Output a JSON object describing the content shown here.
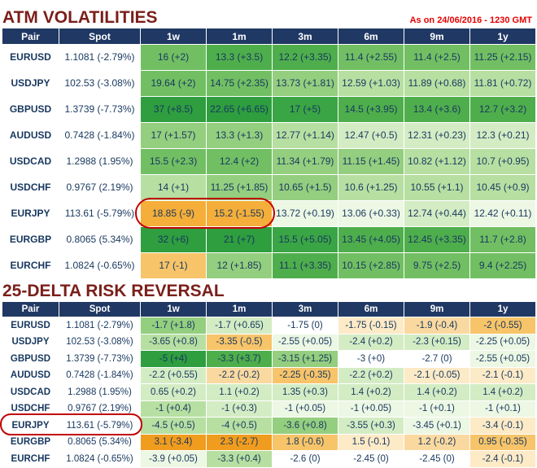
{
  "page": {
    "timestamp": "As on 24/06/2016 - 1230 GMT"
  },
  "colors": {
    "header_bg": "#203864",
    "title_text": "#7a1f1a",
    "timestamp_text": "#e60000",
    "cell_text": "#17375e",
    "highlight_stroke": "#c00000"
  },
  "annotations": [
    {
      "shape": "ellipse",
      "color": "#c00000",
      "table": "ATM VOLATILITIES",
      "row": "EURJPY",
      "columns": [
        "1w",
        "1m"
      ]
    },
    {
      "shape": "ellipse",
      "color": "#c00000",
      "table": "25-DELTA RISK REVERSAL",
      "row": "EURJPY",
      "columns": [
        "Pair",
        "Spot"
      ]
    }
  ],
  "tables": [
    {
      "id": "atm-volatilities",
      "title": "ATM VOLATILITIES",
      "columns": [
        "Pair",
        "Spot",
        "1w",
        "1m",
        "3m",
        "6m",
        "9m",
        "1y"
      ],
      "rows": [
        {
          "pair": "EURUSD",
          "spot": "1.1081 (-2.79%)",
          "cells": [
            {
              "text": "16 (+2)",
              "bg": "#72bf63"
            },
            {
              "text": "13.3 (+3.5)",
              "bg": "#4fae4c"
            },
            {
              "text": "12.2 (+3.35)",
              "bg": "#4fae4c"
            },
            {
              "text": "11.4 (+2.55)",
              "bg": "#72bf63"
            },
            {
              "text": "11.4 (+2.5)",
              "bg": "#72bf63"
            },
            {
              "text": "11.25 (+2.15)",
              "bg": "#72bf63"
            }
          ]
        },
        {
          "pair": "USDJPY",
          "spot": "102.53 (-3.08%)",
          "cells": [
            {
              "text": "19.64 (+2)",
              "bg": "#72bf63"
            },
            {
              "text": "14.75 (+2.35)",
              "bg": "#72bf63"
            },
            {
              "text": "13.73 (+1.81)",
              "bg": "#94ce7f"
            },
            {
              "text": "12.59 (+1.03)",
              "bg": "#b7dfa2"
            },
            {
              "text": "11.89 (+0.68)",
              "bg": "#b7dfa2"
            },
            {
              "text": "11.81 (+0.72)",
              "bg": "#b7dfa2"
            }
          ]
        },
        {
          "pair": "GBPUSD",
          "spot": "1.3739 (-7.73%)",
          "cells": [
            {
              "text": "37 (+8.5)",
              "bg": "#2e9e3f"
            },
            {
              "text": "22.65 (+6.65)",
              "bg": "#2e9e3f"
            },
            {
              "text": "17 (+5)",
              "bg": "#3aa545"
            },
            {
              "text": "14.5 (+3.95)",
              "bg": "#4fae4c"
            },
            {
              "text": "13.4 (+3.6)",
              "bg": "#4fae4c"
            },
            {
              "text": "12.7 (+3.2)",
              "bg": "#4fae4c"
            }
          ]
        },
        {
          "pair": "AUDUSD",
          "spot": "0.7428 (-1.84%)",
          "cells": [
            {
              "text": "17 (+1.57)",
              "bg": "#94ce7f"
            },
            {
              "text": "13.3 (+1.3)",
              "bg": "#94ce7f"
            },
            {
              "text": "12.77 (+1.14)",
              "bg": "#b7dfa2"
            },
            {
              "text": "12.47 (+0.5)",
              "bg": "#d4ecc4"
            },
            {
              "text": "12.31 (+0.23)",
              "bg": "#d4ecc4"
            },
            {
              "text": "12.3 (+0.21)",
              "bg": "#d4ecc4"
            }
          ]
        },
        {
          "pair": "USDCAD",
          "spot": "1.2988 (1.95%)",
          "cells": [
            {
              "text": "15.5 (+2.3)",
              "bg": "#72bf63"
            },
            {
              "text": "12.4 (+2)",
              "bg": "#72bf63"
            },
            {
              "text": "11.34 (+1.79)",
              "bg": "#94ce7f"
            },
            {
              "text": "11.15 (+1.45)",
              "bg": "#94ce7f"
            },
            {
              "text": "10.82 (+1.12)",
              "bg": "#b7dfa2"
            },
            {
              "text": "10.7 (+0.95)",
              "bg": "#b7dfa2"
            }
          ]
        },
        {
          "pair": "USDCHF",
          "spot": "0.9767 (2.19%)",
          "cells": [
            {
              "text": "14 (+1)",
              "bg": "#b7dfa2"
            },
            {
              "text": "11.25 (+1.85)",
              "bg": "#94ce7f"
            },
            {
              "text": "10.65 (+1.5)",
              "bg": "#94ce7f"
            },
            {
              "text": "10.6 (+1.25)",
              "bg": "#b7dfa2"
            },
            {
              "text": "10.55 (+1.1)",
              "bg": "#b7dfa2"
            },
            {
              "text": "10.45 (+0.9)",
              "bg": "#b7dfa2"
            }
          ]
        },
        {
          "pair": "EURJPY",
          "spot": "113.61 (-5.79%)",
          "cells": [
            {
              "text": "18.85 (-9)",
              "bg": "#f4ae39"
            },
            {
              "text": "15.2 (-1.55)",
              "bg": "#f4ae39"
            },
            {
              "text": "13.72 (+0.19)",
              "bg": "#ecf7e4"
            },
            {
              "text": "13.06 (+0.33)",
              "bg": "#ecf7e4"
            },
            {
              "text": "12.74 (+0.44)",
              "bg": "#d4ecc4"
            },
            {
              "text": "12.42 (+0.11)",
              "bg": "#ecf7e4"
            }
          ]
        },
        {
          "pair": "EURGBP",
          "spot": "0.8065 (5.34%)",
          "cells": [
            {
              "text": "32 (+6)",
              "bg": "#2e9e3f"
            },
            {
              "text": "21 (+7)",
              "bg": "#2e9e3f"
            },
            {
              "text": "15.5 (+5.05)",
              "bg": "#3aa545"
            },
            {
              "text": "13.45 (+4.05)",
              "bg": "#4fae4c"
            },
            {
              "text": "12.45 (+3.35)",
              "bg": "#4fae4c"
            },
            {
              "text": "11.7 (+2.8)",
              "bg": "#72bf63"
            }
          ]
        },
        {
          "pair": "EURCHF",
          "spot": "1.0824 (-0.65%)",
          "cells": [
            {
              "text": "17 (-1)",
              "bg": "#f7c469"
            },
            {
              "text": "12 (+1.85)",
              "bg": "#94ce7f"
            },
            {
              "text": "11.1 (+3.35)",
              "bg": "#4fae4c"
            },
            {
              "text": "10.15 (+2.85)",
              "bg": "#72bf63"
            },
            {
              "text": "9.75 (+2.5)",
              "bg": "#72bf63"
            },
            {
              "text": "9.4 (+2.25)",
              "bg": "#72bf63"
            }
          ]
        }
      ]
    },
    {
      "id": "risk-reversal",
      "title": "25-DELTA RISK REVERSAL",
      "columns": [
        "Pair",
        "Spot",
        "1w",
        "1m",
        "3m",
        "6m",
        "9m",
        "1y"
      ],
      "rows": [
        {
          "pair": "EURUSD",
          "spot": "1.1081 (-2.79%)",
          "cells": [
            {
              "text": "-1.7 (+1.8)",
              "bg": "#94ce7f"
            },
            {
              "text": "-1.7 (+0.65)",
              "bg": "#d4ecc4"
            },
            {
              "text": "-1.75 (0)",
              "bg": "#ffffff"
            },
            {
              "text": "-1.75 (-0.15)",
              "bg": "#fdeac6"
            },
            {
              "text": "-1.9 (-0.4)",
              "bg": "#fad9a0"
            },
            {
              "text": "-2 (-0.55)",
              "bg": "#f7c469"
            }
          ]
        },
        {
          "pair": "USDJPY",
          "spot": "102.53 (-3.08%)",
          "cells": [
            {
              "text": "-3.65 (+0.8)",
              "bg": "#b7dfa2"
            },
            {
              "text": "-3.35 (-0.5)",
              "bg": "#f7c469"
            },
            {
              "text": "-2.55 (+0.05)",
              "bg": "#ecf7e4"
            },
            {
              "text": "-2.4 (+0.2)",
              "bg": "#d4ecc4"
            },
            {
              "text": "-2.3 (+0.15)",
              "bg": "#d4ecc4"
            },
            {
              "text": "-2.25 (+0.05)",
              "bg": "#ecf7e4"
            }
          ]
        },
        {
          "pair": "GBPUSD",
          "spot": "1.3739 (-7.73%)",
          "cells": [
            {
              "text": "-5 (+4)",
              "bg": "#2e9e3f"
            },
            {
              "text": "-3.3 (+3.7)",
              "bg": "#4fae4c"
            },
            {
              "text": "-3.15 (+1.25)",
              "bg": "#94ce7f"
            },
            {
              "text": "-3 (+0)",
              "bg": "#ffffff"
            },
            {
              "text": "-2.7 (0)",
              "bg": "#ffffff"
            },
            {
              "text": "-2.55 (+0.05)",
              "bg": "#ecf7e4"
            }
          ]
        },
        {
          "pair": "AUDUSD",
          "spot": "0.7428 (-1.84%)",
          "cells": [
            {
              "text": "-2.2 (+0.55)",
              "bg": "#d4ecc4"
            },
            {
              "text": "-2.2 (-0.2)",
              "bg": "#fad9a0"
            },
            {
              "text": "-2.25 (-0.35)",
              "bg": "#f7c469"
            },
            {
              "text": "-2.2 (+0.2)",
              "bg": "#d4ecc4"
            },
            {
              "text": "-2.1 (-0.05)",
              "bg": "#fdeac6"
            },
            {
              "text": "-2.1 (-0.1)",
              "bg": "#fdeac6"
            }
          ]
        },
        {
          "pair": "USDCAD",
          "spot": "1.2988 (1.95%)",
          "cells": [
            {
              "text": "0.65 (+0.2)",
              "bg": "#d4ecc4"
            },
            {
              "text": "1.1 (+0.2)",
              "bg": "#d4ecc4"
            },
            {
              "text": "1.35 (+0.3)",
              "bg": "#d4ecc4"
            },
            {
              "text": "1.4 (+0.2)",
              "bg": "#d4ecc4"
            },
            {
              "text": "1.4 (+0.2)",
              "bg": "#d4ecc4"
            },
            {
              "text": "1.4 (+0.2)",
              "bg": "#d4ecc4"
            }
          ]
        },
        {
          "pair": "USDCHF",
          "spot": "0.9767 (2.19%)",
          "cells": [
            {
              "text": "-1 (+0.4)",
              "bg": "#b7dfa2"
            },
            {
              "text": "-1 (+0.3)",
              "bg": "#d4ecc4"
            },
            {
              "text": "-1 (+0.05)",
              "bg": "#ecf7e4"
            },
            {
              "text": "-1 (+0.05)",
              "bg": "#ecf7e4"
            },
            {
              "text": "-1 (+0.1)",
              "bg": "#ecf7e4"
            },
            {
              "text": "-1 (+0.1)",
              "bg": "#ecf7e4"
            }
          ]
        },
        {
          "pair": "EURJPY",
          "spot": "113.61 (-5.79%)",
          "cells": [
            {
              "text": "-4.5 (+0.5)",
              "bg": "#b7dfa2"
            },
            {
              "text": "-4 (+0.5)",
              "bg": "#b7dfa2"
            },
            {
              "text": "-3.6 (+0.8)",
              "bg": "#94ce7f"
            },
            {
              "text": "-3.55 (+0.3)",
              "bg": "#d4ecc4"
            },
            {
              "text": "-3.45 (+0.1)",
              "bg": "#ecf7e4"
            },
            {
              "text": "-3.4 (-0.1)",
              "bg": "#fdeac6"
            }
          ]
        },
        {
          "pair": "EURGBP",
          "spot": "0.8065 (5.34%)",
          "cells": [
            {
              "text": "3.1 (-3.4)",
              "bg": "#f09c1e"
            },
            {
              "text": "2.3 (-2.7)",
              "bg": "#f09c1e"
            },
            {
              "text": "1.8 (-0.6)",
              "bg": "#f7c469"
            },
            {
              "text": "1.5 (-0.1)",
              "bg": "#fdeac6"
            },
            {
              "text": "1.2 (-0.2)",
              "bg": "#fad9a0"
            },
            {
              "text": "0.95 (-0.35)",
              "bg": "#f7c469"
            }
          ]
        },
        {
          "pair": "EURCHF",
          "spot": "1.0824 (-0.65%)",
          "cells": [
            {
              "text": "-3.9 (+0.05)",
              "bg": "#ecf7e4"
            },
            {
              "text": "-3.3 (+0.4)",
              "bg": "#b7dfa2"
            },
            {
              "text": "-2.6 (0)",
              "bg": "#ffffff"
            },
            {
              "text": "-2.45 (0)",
              "bg": "#ffffff"
            },
            {
              "text": "-2.45 (0)",
              "bg": "#ffffff"
            },
            {
              "text": "-2.4 (-0.1)",
              "bg": "#fdeac6"
            }
          ]
        }
      ]
    }
  ]
}
